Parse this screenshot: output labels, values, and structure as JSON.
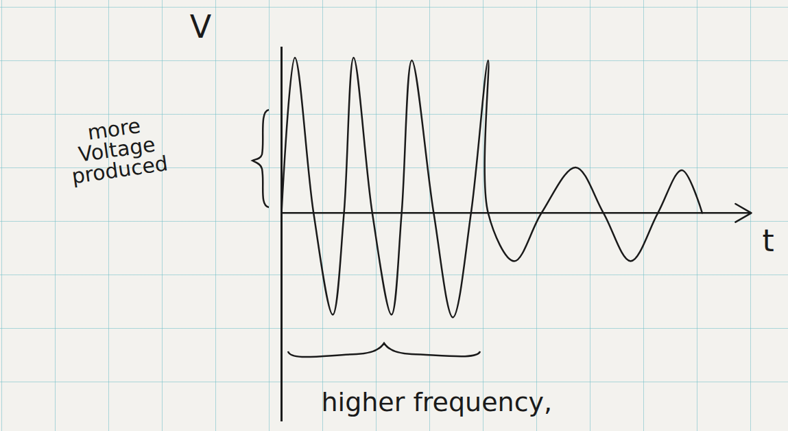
{
  "chart_data": {
    "type": "line",
    "x": [
      0,
      0.25,
      0.6,
      0.96,
      1.17,
      1.35,
      1.7,
      2.06,
      2.25,
      2.44,
      2.85,
      3.21,
      3.55,
      3.87,
      3.87,
      4.36,
      4.87,
      5.51,
      6.03,
      6.54,
      7.05,
      7.5,
      7.88
    ],
    "values": [
      0,
      2.9,
      0,
      -1.9,
      0,
      2.9,
      0,
      -1.9,
      0,
      2.85,
      0,
      -1.95,
      0,
      2.85,
      0,
      -0.9,
      0,
      0.85,
      0,
      -0.9,
      0,
      0.8,
      0
    ],
    "xlim": [
      0,
      8.8
    ],
    "ylim": [
      -3.9,
      3.1
    ],
    "xlabel": "t",
    "ylabel": "V",
    "color": "#1a1a1a",
    "tick_labels": false,
    "annotations": [
      "more Voltage produced",
      "higher frequency,"
    ]
  }
}
